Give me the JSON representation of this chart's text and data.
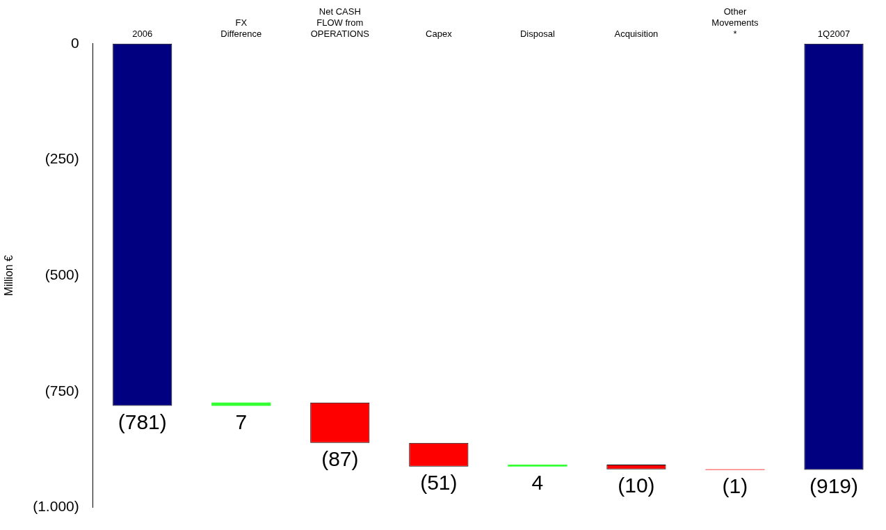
{
  "chart_data": {
    "type": "bar",
    "ylabel": "Million €",
    "categories": [
      "2006",
      "FX Difference",
      "Net CASH FLOW from OPERATIONS",
      "Capex",
      "Disposal",
      "Acquisition",
      "Other Movements *",
      "1Q2007"
    ],
    "values": [
      -781,
      7,
      -87,
      -51,
      4,
      -10,
      -1,
      -919
    ],
    "base": [
      0,
      -781,
      -774,
      -861,
      -912,
      -908,
      -918,
      0
    ],
    "colors": [
      "#000080",
      "#33ff33",
      "#ff0000",
      "#ff0000",
      "#33ff33",
      "#ff0000",
      "#ff0000",
      "#000080"
    ],
    "value_labels": [
      "(781)",
      "7",
      "(87)",
      "(51)",
      "4",
      "(10)",
      "(1)",
      "(919)"
    ],
    "ylim": [
      -1000,
      0
    ],
    "yticks": [
      {
        "value": 0,
        "label": "0"
      },
      {
        "value": -250,
        "label": "(250)"
      },
      {
        "value": -500,
        "label": "(500)"
      },
      {
        "value": -750,
        "label": "(750)"
      },
      {
        "value": -1000,
        "label": "(1.000)"
      }
    ],
    "grid": false,
    "legend": false
  }
}
